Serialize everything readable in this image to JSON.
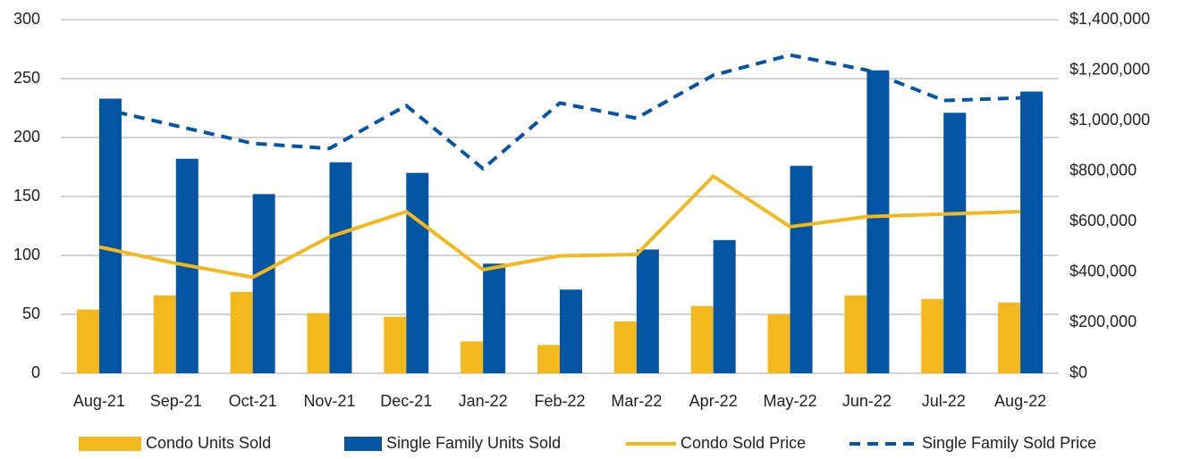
{
  "chart_data": {
    "type": "bar-line",
    "categories": [
      "Aug-21",
      "Sep-21",
      "Oct-21",
      "Nov-21",
      "Dec-21",
      "Jan-22",
      "Feb-22",
      "Mar-22",
      "Apr-22",
      "May-22",
      "Jun-22",
      "Jul-22",
      "Aug-22"
    ],
    "series": [
      {
        "name": "Condo Units Sold",
        "kind": "bar",
        "color": "#f2b81c",
        "values": [
          54,
          66,
          69,
          51,
          48,
          27,
          24,
          44,
          57,
          50,
          66,
          63,
          60
        ]
      },
      {
        "name": "Single Family Units Sold",
        "kind": "bar",
        "color": "#0455a4",
        "values": [
          233,
          182,
          152,
          179,
          170,
          93,
          71,
          105,
          113,
          176,
          257,
          221,
          239
        ]
      },
      {
        "name": "Condo Sold Price",
        "kind": "line",
        "line_style": "solid",
        "axis": "y2",
        "color": "#f2b81c",
        "values": [
          500000,
          435000,
          380000,
          540000,
          640000,
          410000,
          465000,
          470000,
          780000,
          580000,
          620000,
          630000,
          640000
        ]
      },
      {
        "name": "Single Family Sold Price",
        "kind": "line",
        "line_style": "dashed",
        "axis": "y2",
        "color": "#0455a4",
        "values": [
          1050000,
          980000,
          910000,
          890000,
          1060000,
          810000,
          1070000,
          1010000,
          1180000,
          1260000,
          1200000,
          1080000,
          1090000
        ]
      }
    ],
    "ylim": [
      0,
      300
    ],
    "yticks": [
      0,
      50,
      100,
      150,
      200,
      250,
      300
    ],
    "y2lim": [
      0,
      1400000
    ],
    "y2ticks": [
      {
        "value": 0,
        "label": "$0"
      },
      {
        "value": 200000,
        "label": "$200,000"
      },
      {
        "value": 400000,
        "label": "$400,000"
      },
      {
        "value": 600000,
        "label": "$600,000"
      },
      {
        "value": 800000,
        "label": "$800,000"
      },
      {
        "value": 1000000,
        "label": "$1,000,000"
      },
      {
        "value": 1200000,
        "label": "$1,200,000"
      },
      {
        "value": 1400000,
        "label": "$1,400,000"
      }
    ],
    "grid": true,
    "legend": "bottom"
  }
}
